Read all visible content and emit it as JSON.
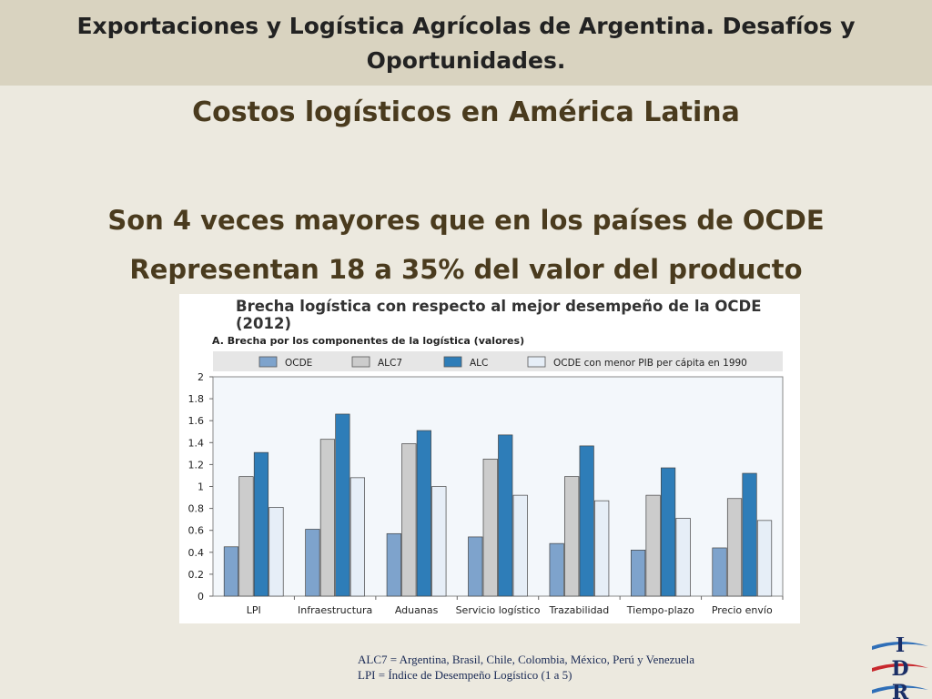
{
  "header": {
    "title": "Exportaciones y Logística Agrícolas de Argentina. Desafíos y Oportunidades."
  },
  "slide": {
    "subtitle": "Costos logísticos en América Latina",
    "bullets": [
      "Son 4 veces mayores que en los países de OCDE",
      "Representan 18 a 35% del valor del producto"
    ]
  },
  "chart_data": {
    "type": "bar",
    "title": "Brecha logística con respecto al mejor desempeño de la OCDE (2012)",
    "panel_title": "A. Brecha por los componentes de la logística (valores)",
    "categories": [
      "LPI",
      "Infraestructura",
      "Aduanas",
      "Servicio logístico",
      "Trazabilidad",
      "Tiempo-plazo",
      "Precio envío"
    ],
    "series": [
      {
        "name": "OCDE",
        "color": "#7ea3cc",
        "values": [
          0.45,
          0.61,
          0.57,
          0.54,
          0.48,
          0.42,
          0.44
        ]
      },
      {
        "name": "ALC7",
        "color": "#cccccc",
        "values": [
          1.09,
          1.43,
          1.39,
          1.25,
          1.09,
          0.92,
          0.89
        ]
      },
      {
        "name": "ALC",
        "color": "#2e7db8",
        "values": [
          1.31,
          1.66,
          1.51,
          1.47,
          1.37,
          1.17,
          1.12
        ]
      },
      {
        "name": "OCDE con menor PIB per cápita en 1990",
        "color": "#e6eef7",
        "values": [
          0.81,
          1.08,
          1.0,
          0.92,
          0.87,
          0.71,
          0.69
        ]
      }
    ],
    "yticks": [
      "0",
      "0.2",
      "0.4",
      "0.6",
      "0.8",
      "1",
      "1.2",
      "1.4",
      "1.6",
      "1.8",
      "2"
    ],
    "ylim": [
      0,
      2
    ],
    "grid": false,
    "legend_position": "top"
  },
  "footnotes": [
    "ALC7 = Argentina, Brasil, Chile, Colombia,  México, Perú y Venezuela",
    "LPI = Índice de Desempeño Logístico (1 a 5)"
  ],
  "logo": {
    "letters": [
      "I",
      "D",
      "R"
    ],
    "colors": {
      "navy": "#1a2e66",
      "red": "#c8282d",
      "blue": "#2f6fb8"
    }
  }
}
